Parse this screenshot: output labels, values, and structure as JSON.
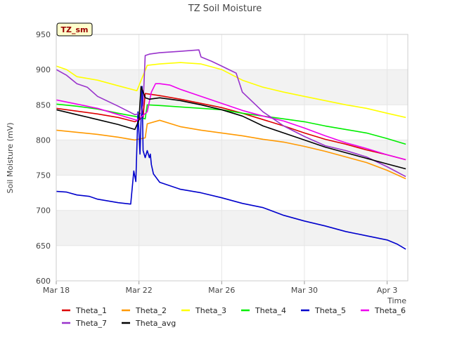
{
  "chart_data": {
    "type": "line",
    "title": "TZ Soil Moisture",
    "xlabel": "Time",
    "ylabel": "Soil Moisture (mV)",
    "site_label": "TZ_sm",
    "xlim": [
      0,
      17
    ],
    "ylim": [
      600,
      950
    ],
    "x_ticks": [
      {
        "x": 0,
        "label": "Mar 18"
      },
      {
        "x": 4,
        "label": "Mar 22"
      },
      {
        "x": 8,
        "label": "Mar 26"
      },
      {
        "x": 12,
        "label": "Mar 30"
      },
      {
        "x": 16,
        "label": "Apr 3"
      }
    ],
    "y_ticks": [
      600,
      650,
      700,
      750,
      800,
      850,
      900,
      950
    ],
    "series": [
      {
        "name": "Theta_1",
        "color": "#dd0000",
        "x": [
          0,
          1,
          2,
          3,
          3.8,
          4.2,
          4.3,
          5,
          6,
          7,
          8,
          9,
          10,
          11,
          12,
          13,
          14,
          15,
          16,
          16.9
        ],
        "y": [
          845,
          841,
          837,
          832,
          826,
          832,
          866,
          863,
          858,
          852,
          846,
          838,
          829,
          820,
          810,
          801,
          794,
          786,
          779,
          772
        ]
      },
      {
        "name": "Theta_2",
        "color": "#ff9900",
        "x": [
          0,
          1,
          2,
          3,
          3.8,
          4.3,
          4.4,
          5,
          6,
          7,
          8,
          9,
          10,
          11,
          12,
          13,
          14,
          15,
          16,
          16.9
        ],
        "y": [
          814,
          811,
          808,
          804,
          800,
          803,
          823,
          828,
          819,
          814,
          810,
          806,
          801,
          797,
          791,
          784,
          776,
          768,
          757,
          745
        ]
      },
      {
        "name": "Theta_3",
        "color": "#ffff00",
        "x": [
          0,
          0.5,
          1,
          2,
          3,
          3.9,
          4.4,
          5,
          6,
          7,
          7.5,
          8,
          9,
          10,
          11,
          12,
          13,
          14,
          15,
          16,
          16.9
        ],
        "y": [
          905,
          900,
          890,
          885,
          877,
          870,
          906,
          908,
          910,
          908,
          904,
          900,
          885,
          875,
          868,
          862,
          856,
          850,
          845,
          838,
          832
        ]
      },
      {
        "name": "Theta_4",
        "color": "#00ee00",
        "x": [
          0,
          1,
          2,
          3,
          3.9,
          4.3,
          4.4,
          5,
          6,
          7,
          8,
          9,
          10,
          11,
          12,
          13,
          14,
          15,
          16,
          16.9
        ],
        "y": [
          851,
          848,
          844,
          838,
          833,
          830,
          850,
          849,
          847,
          845,
          843,
          838,
          834,
          830,
          826,
          820,
          815,
          810,
          802,
          794
        ]
      },
      {
        "name": "Theta_5",
        "color": "#0000cc",
        "x": [
          0,
          0.5,
          1,
          1.6,
          2,
          3,
          3.6,
          3.75,
          3.85,
          3.95,
          4.05,
          4.15,
          4.2,
          4.3,
          4.4,
          4.5,
          4.55,
          4.6,
          4.7,
          5,
          6,
          7,
          8,
          9,
          10,
          11,
          12,
          13,
          14,
          15,
          16,
          16.5,
          16.9
        ],
        "y": [
          727,
          726,
          722,
          720,
          716,
          711,
          709,
          756,
          741,
          840,
          780,
          876,
          785,
          775,
          785,
          775,
          780,
          765,
          752,
          740,
          730,
          725,
          718,
          710,
          704,
          693,
          685,
          678,
          670,
          664,
          658,
          652,
          645
        ]
      },
      {
        "name": "Theta_6",
        "color": "#ee00ee",
        "x": [
          0,
          1,
          2,
          3,
          3.9,
          4.2,
          4.4,
          4.6,
          4.8,
          5,
          5.5,
          6,
          7,
          8,
          9,
          10,
          11,
          12,
          13,
          14,
          15,
          16,
          16.9
        ],
        "y": [
          857,
          851,
          845,
          836,
          828,
          835,
          840,
          868,
          880,
          880,
          878,
          872,
          862,
          852,
          842,
          834,
          827,
          817,
          806,
          796,
          788,
          779,
          772
        ]
      },
      {
        "name": "Theta_7",
        "color": "#9933cc",
        "x": [
          0,
          0.5,
          1,
          1.5,
          2,
          3,
          3.8,
          4.1,
          4.2,
          4.3,
          4.5,
          5,
          6,
          6.9,
          7,
          7.5,
          8,
          8.7,
          9,
          10,
          11,
          12,
          13,
          14,
          15,
          16,
          16.9
        ],
        "y": [
          900,
          892,
          880,
          875,
          862,
          848,
          836,
          838,
          850,
          920,
          922,
          924,
          926,
          928,
          918,
          912,
          905,
          895,
          868,
          840,
          820,
          805,
          792,
          785,
          776,
          762,
          748
        ]
      },
      {
        "name": "Theta_avg",
        "color": "#000000",
        "x": [
          0,
          1,
          2,
          3,
          3.8,
          4.0,
          4.1,
          4.3,
          4.5,
          5,
          6,
          7,
          8,
          9,
          10,
          11,
          12,
          13,
          14,
          15,
          16,
          16.9
        ],
        "y": [
          843,
          836,
          829,
          822,
          815,
          828,
          876,
          860,
          858,
          860,
          856,
          850,
          843,
          834,
          820,
          810,
          800,
          790,
          782,
          774,
          766,
          759
        ]
      }
    ]
  }
}
